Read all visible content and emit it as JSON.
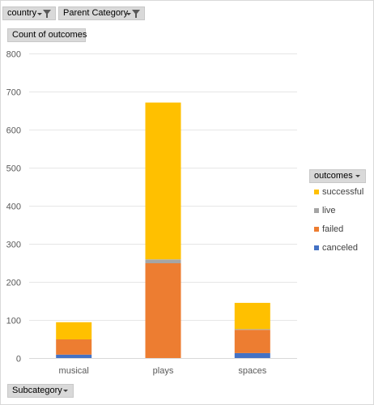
{
  "filters": {
    "country_label": "country",
    "parent_category_label": "Parent Category",
    "value_field_label": "Count of outcomes",
    "axis_field_label": "Subcategory",
    "legend_field_label": "outcomes"
  },
  "legend": {
    "items": [
      {
        "label": "successful",
        "color": "#ffc000"
      },
      {
        "label": "live",
        "color": "#a5a5a5"
      },
      {
        "label": "failed",
        "color": "#ed7d31"
      },
      {
        "label": "canceled",
        "color": "#4472c4"
      }
    ]
  },
  "chart_data": {
    "type": "bar",
    "stacked": true,
    "categories": [
      "musical",
      "plays",
      "spaces"
    ],
    "series": [
      {
        "name": "canceled",
        "color": "#4472c4",
        "values": [
          9,
          0,
          13
        ]
      },
      {
        "name": "failed",
        "color": "#ed7d31",
        "values": [
          40,
          249,
          61
        ]
      },
      {
        "name": "live",
        "color": "#a5a5a5",
        "values": [
          0,
          10,
          2
        ]
      },
      {
        "name": "successful",
        "color": "#ffc000",
        "values": [
          45,
          412,
          69
        ]
      }
    ],
    "ylim": [
      0,
      800
    ],
    "yticks": [
      0,
      100,
      200,
      300,
      400,
      500,
      600,
      700,
      800
    ],
    "ylabel": "",
    "xlabel": "",
    "title": "",
    "grid": true,
    "legend_position": "right"
  }
}
